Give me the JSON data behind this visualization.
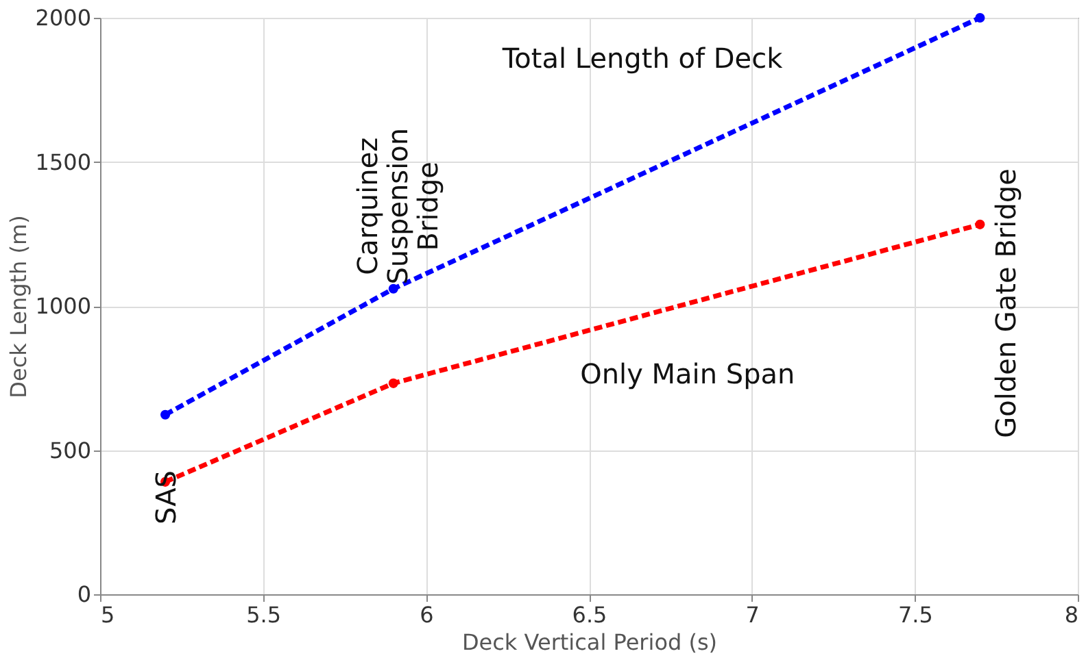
{
  "chart_data": {
    "type": "line",
    "xlabel": "Deck Vertical Period (s)",
    "ylabel": "Deck Length (m)",
    "x": [
      5.2,
      5.9,
      7.7
    ],
    "series": [
      {
        "name": "Total Length of Deck",
        "color": "#0000ff",
        "values": [
          623,
          1060,
          2000
        ]
      },
      {
        "name": "Only Main Span",
        "color": "#ff0000",
        "values": [
          390,
          732,
          1283
        ]
      }
    ],
    "xlim": [
      5,
      8
    ],
    "xticks": [
      5,
      5.5,
      6,
      6.5,
      7,
      7.5,
      8
    ],
    "ylim": [
      0,
      2000
    ],
    "yticks": [
      0,
      500,
      1000,
      1500,
      2000
    ],
    "grid": true,
    "marker": "circle",
    "line_style": "dashed",
    "legend": false,
    "annotations": [
      "SAS",
      "Carquinez Suspension Bridge",
      "Golden Gate Bridge"
    ]
  }
}
